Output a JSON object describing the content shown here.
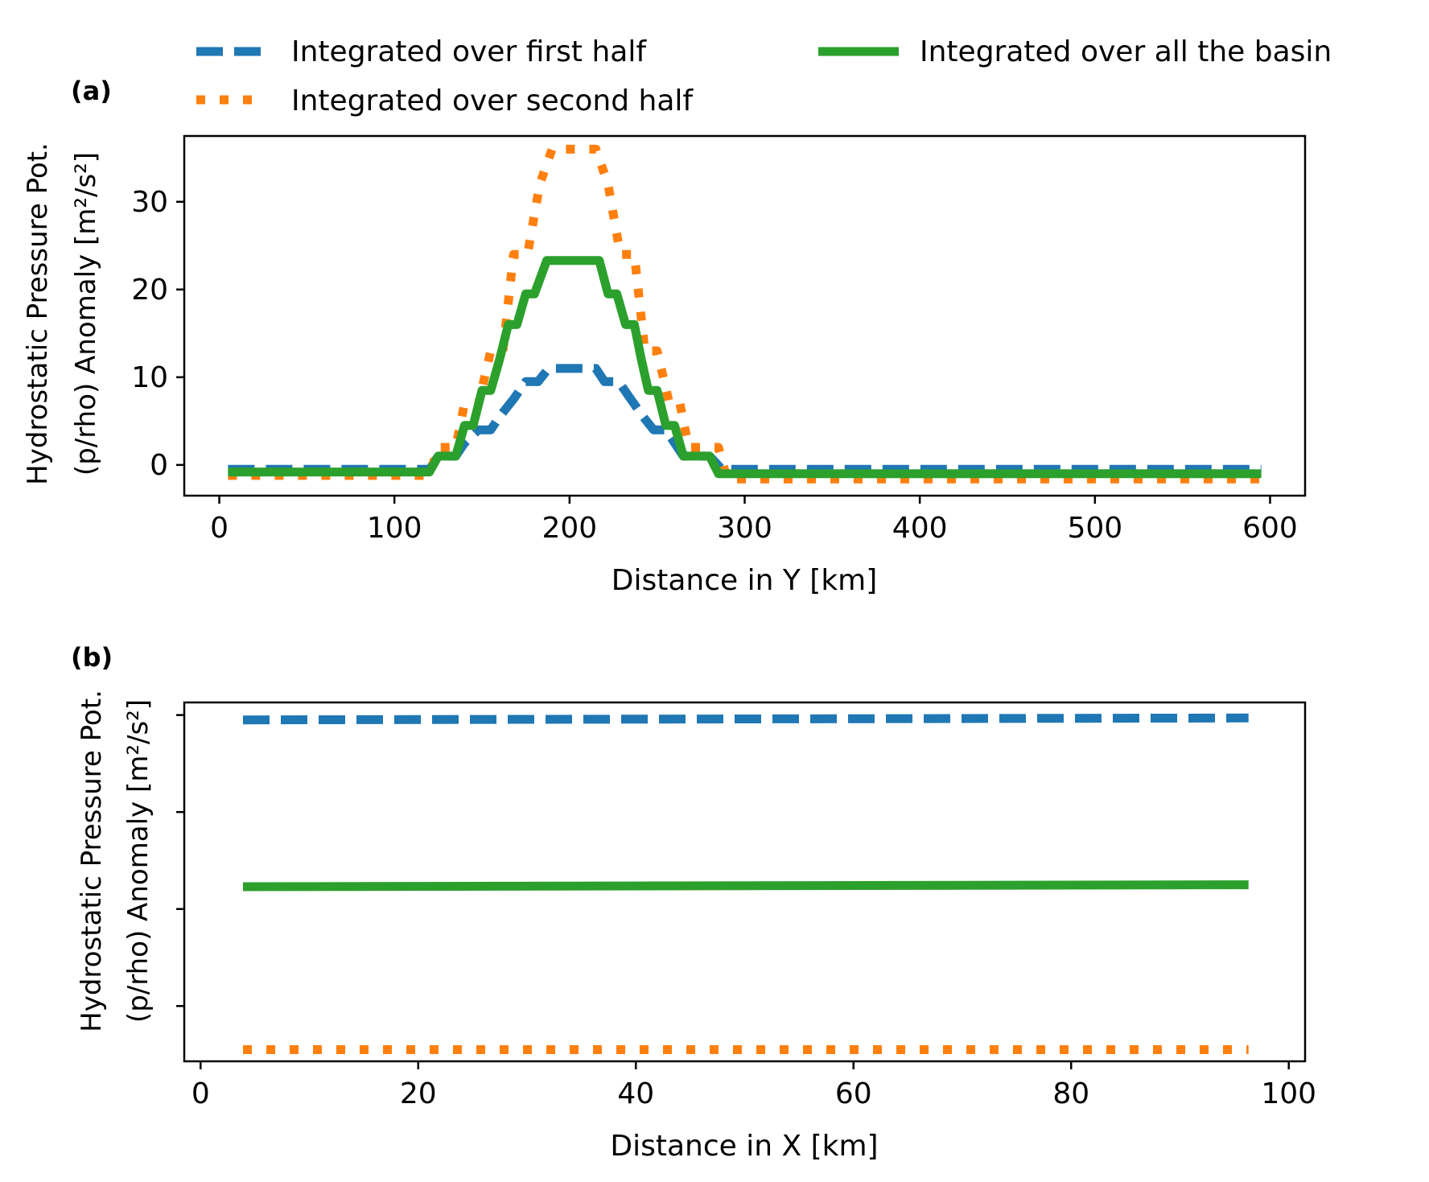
{
  "legend": {
    "placement": "top",
    "entries": [
      {
        "label": "Integrated over first half",
        "color": "#1f77b4",
        "style": "dashed"
      },
      {
        "label": "Integrated over second half",
        "color": "#ff7f0e",
        "style": "dotted"
      },
      {
        "label": "Integrated over all the basin",
        "color": "#2ca02c",
        "style": "solid"
      }
    ]
  },
  "chart_data": [
    {
      "type": "line",
      "panel_label": "(a)",
      "xlabel": "Distance in Y [km]",
      "ylabel_line1": "Hydrostatic Pressure Pot.",
      "ylabel_line2": "(p/rho) Anomaly [m²/s²]",
      "xlim": [
        -20,
        620
      ],
      "ylim": [
        -3.5,
        37.5
      ],
      "xticks": [
        0,
        100,
        200,
        300,
        400,
        500,
        600
      ],
      "yticks": [
        0,
        10,
        20,
        30
      ],
      "grid": false,
      "series": [
        {
          "name": "Integrated over first half",
          "color": "#1f77b4",
          "style": "dashed",
          "points": [
            [
              5,
              -0.5
            ],
            [
              120,
              -0.5
            ],
            [
              125,
              1
            ],
            [
              135,
              1
            ],
            [
              140,
              2.5
            ],
            [
              148,
              4
            ],
            [
              155,
              4
            ],
            [
              160,
              5.5
            ],
            [
              168,
              7.5
            ],
            [
              175,
              9.5
            ],
            [
              182,
              9.5
            ],
            [
              188,
              11
            ],
            [
              215,
              11
            ],
            [
              220,
              9.5
            ],
            [
              228,
              9.5
            ],
            [
              235,
              7.5
            ],
            [
              242,
              5.5
            ],
            [
              248,
              4
            ],
            [
              255,
              4
            ],
            [
              260,
              2.5
            ],
            [
              265,
              1
            ],
            [
              280,
              1
            ],
            [
              287,
              -0.5
            ],
            [
              595,
              -0.5
            ]
          ]
        },
        {
          "name": "Integrated over second half",
          "color": "#ff7f0e",
          "style": "dotted",
          "points": [
            [
              5,
              -1.2
            ],
            [
              120,
              -1.2
            ],
            [
              125,
              2
            ],
            [
              135,
              2
            ],
            [
              140,
              7
            ],
            [
              148,
              7
            ],
            [
              155,
              13
            ],
            [
              162,
              13
            ],
            [
              168,
              24
            ],
            [
              176,
              24
            ],
            [
              183,
              32
            ],
            [
              190,
              36
            ],
            [
              215,
              36
            ],
            [
              222,
              32
            ],
            [
              229,
              24
            ],
            [
              237,
              24
            ],
            [
              243,
              13
            ],
            [
              250,
              13
            ],
            [
              257,
              7
            ],
            [
              263,
              7
            ],
            [
              268,
              2
            ],
            [
              285,
              2
            ],
            [
              290,
              -1.6
            ],
            [
              595,
              -1.6
            ]
          ]
        },
        {
          "name": "Integrated over all the basin",
          "color": "#2ca02c",
          "style": "solid",
          "points": [
            [
              5,
              -0.8
            ],
            [
              120,
              -0.8
            ],
            [
              125,
              1
            ],
            [
              135,
              1
            ],
            [
              140,
              4.5
            ],
            [
              145,
              4.5
            ],
            [
              150,
              8.5
            ],
            [
              155,
              8.5
            ],
            [
              160,
              12
            ],
            [
              165,
              16
            ],
            [
              170,
              16
            ],
            [
              175,
              19.5
            ],
            [
              180,
              19.5
            ],
            [
              187,
              23.3
            ],
            [
              217,
              23.3
            ],
            [
              222,
              19.5
            ],
            [
              227,
              19.5
            ],
            [
              232,
              16
            ],
            [
              237,
              16
            ],
            [
              241,
              12
            ],
            [
              245,
              8.5
            ],
            [
              250,
              8.5
            ],
            [
              255,
              4.5
            ],
            [
              260,
              4.5
            ],
            [
              265,
              1
            ],
            [
              280,
              1
            ],
            [
              285,
              -1
            ],
            [
              595,
              -1
            ]
          ]
        }
      ]
    },
    {
      "type": "line",
      "panel_label": "(b)",
      "xlabel": "Distance in X [km]",
      "ylabel_line1": "Hydrostatic Pressure Pot.",
      "ylabel_line2": "(p/rho) Anomaly [m²/s²]",
      "xlim": [
        -1.5,
        101.5
      ],
      "ylim": [
        3.43,
        7.13
      ],
      "xticks": [
        0,
        20,
        40,
        60,
        80,
        100
      ],
      "yticks": [
        4,
        5,
        6,
        7
      ],
      "ytick_labels_shown": false,
      "grid": false,
      "series": [
        {
          "name": "Integrated over first half",
          "color": "#1f77b4",
          "style": "dashed",
          "points": [
            [
              3.9,
              6.95
            ],
            [
              96.3,
              6.97
            ]
          ]
        },
        {
          "name": "Integrated over second half",
          "color": "#ff7f0e",
          "style": "dotted",
          "points": [
            [
              3.9,
              3.55
            ],
            [
              96.3,
              3.55
            ]
          ]
        },
        {
          "name": "Integrated over all the basin",
          "color": "#2ca02c",
          "style": "solid",
          "points": [
            [
              3.9,
              5.23
            ],
            [
              96.3,
              5.25
            ]
          ]
        }
      ]
    }
  ]
}
